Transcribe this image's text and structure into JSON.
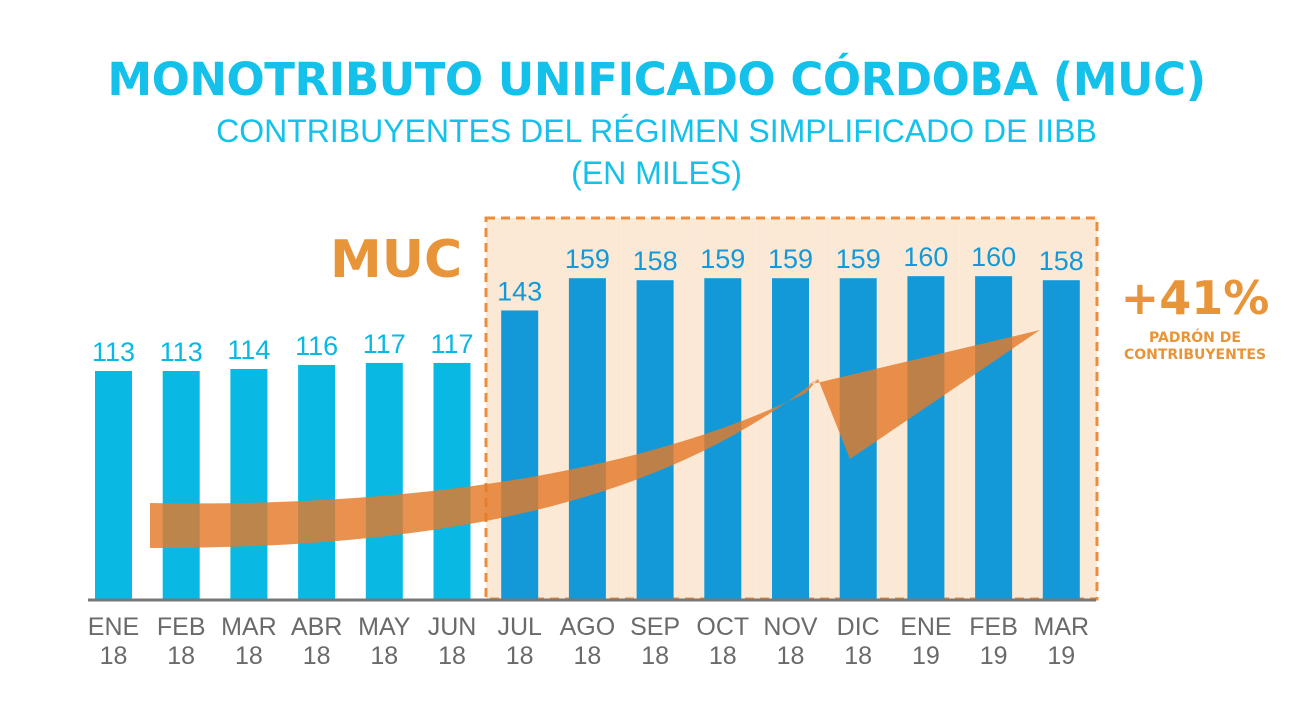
{
  "title": "MONOTRIBUTO UNIFICADO CÓRDOBA (MUC)",
  "subtitle_line1": "CONTRIBUYENTES DEL RÉGIMEN SIMPLIFICADO DE IIBB",
  "subtitle_line2": "(EN MILES)",
  "muc_label": "MUC",
  "growth": {
    "value": "+41%",
    "note_line1": "PADRÓN DE",
    "note_line2": "CONTRIBUYENTES"
  },
  "colors": {
    "pre_muc_bar": "#09b8e3",
    "muc_bar": "#1399d8",
    "muc_region_fill": "#fbe9d6",
    "muc_region_border": "#ec8d3c",
    "arrow": "#e47a2a",
    "accent_orange": "#e8953a"
  },
  "chart_data": {
    "type": "bar",
    "categories": [
      [
        "ENE",
        "18"
      ],
      [
        "FEB",
        "18"
      ],
      [
        "MAR",
        "18"
      ],
      [
        "ABR",
        "18"
      ],
      [
        "MAY",
        "18"
      ],
      [
        "JUN",
        "18"
      ],
      [
        "JUL",
        "18"
      ],
      [
        "AGO",
        "18"
      ],
      [
        "SEP",
        "18"
      ],
      [
        "OCT",
        "18"
      ],
      [
        "NOV",
        "18"
      ],
      [
        "DIC",
        "18"
      ],
      [
        "ENE",
        "19"
      ],
      [
        "FEB",
        "19"
      ],
      [
        "MAR",
        "19"
      ]
    ],
    "values": [
      113,
      113,
      114,
      116,
      117,
      117,
      143,
      159,
      158,
      159,
      159,
      159,
      160,
      160,
      158
    ],
    "muc_start_index": 6,
    "ylim": [
      0,
      200
    ],
    "grid": false
  }
}
